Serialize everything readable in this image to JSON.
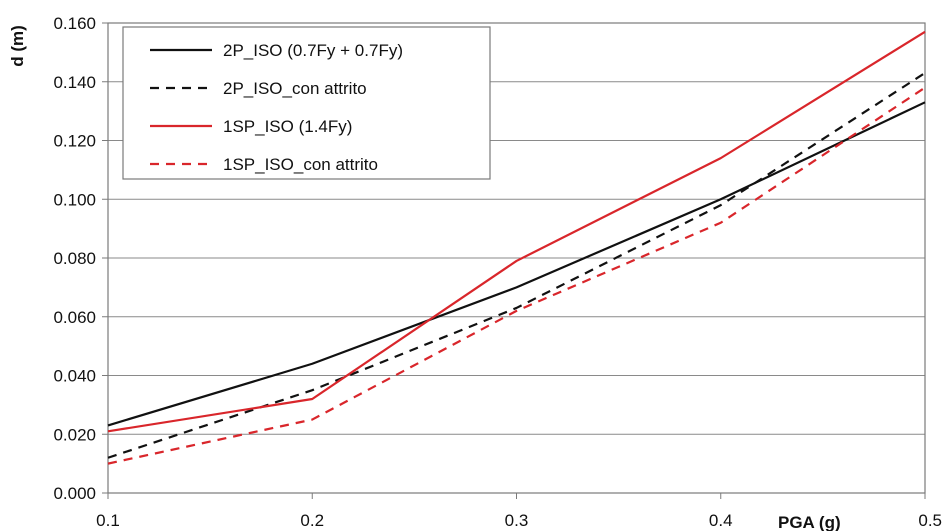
{
  "chart_data": {
    "type": "line",
    "title": "",
    "xlabel": "PGA (g)",
    "ylabel": "d (m)",
    "x": [
      0.1,
      0.2,
      0.3,
      0.4,
      0.5
    ],
    "xlim": [
      0.1,
      0.5
    ],
    "ylim": [
      0,
      0.16
    ],
    "xticks": [
      "0.1",
      "0.2",
      "0.3",
      "0.4",
      "0.5"
    ],
    "yticks": [
      "0.000",
      "0.020",
      "0.040",
      "0.060",
      "0.080",
      "0.100",
      "0.120",
      "0.140",
      "0.160"
    ],
    "grid": "horizontal",
    "legend_position": "top-left",
    "series": [
      {
        "name": "2P_ISO (0.7Fy + 0.7Fy)",
        "color": "#111111",
        "dash": "solid",
        "values": [
          0.023,
          0.044,
          0.07,
          0.1,
          0.133
        ]
      },
      {
        "name": "2P_ISO_con attrito",
        "color": "#111111",
        "dash": "dashed",
        "values": [
          0.012,
          0.035,
          0.063,
          0.098,
          0.143
        ]
      },
      {
        "name": "1SP_ISO (1.4Fy)",
        "color": "#d9262b",
        "dash": "solid",
        "values": [
          0.021,
          0.032,
          0.079,
          0.114,
          0.157
        ]
      },
      {
        "name": "1SP_ISO_con attrito",
        "color": "#d9262b",
        "dash": "dashed",
        "values": [
          0.01,
          0.025,
          0.062,
          0.092,
          0.138
        ]
      }
    ]
  }
}
